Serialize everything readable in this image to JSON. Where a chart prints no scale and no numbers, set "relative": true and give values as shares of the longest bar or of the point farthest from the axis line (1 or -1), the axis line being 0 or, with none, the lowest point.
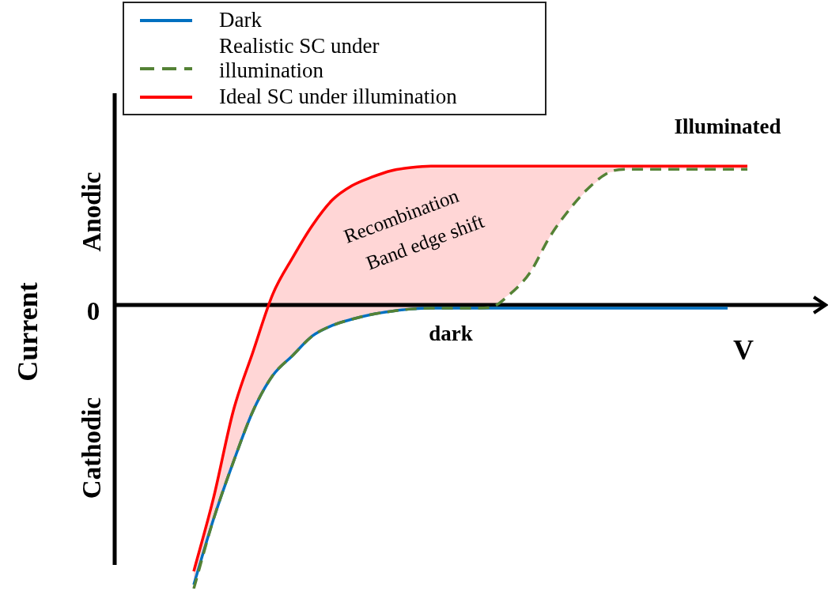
{
  "chart_data": {
    "type": "line",
    "relative": true,
    "xlabel": "V",
    "ylabel": "Current",
    "legend": "top left",
    "categories": [
      null,
      null,
      null,
      null,
      null,
      null,
      null,
      null,
      null,
      null,
      null,
      null,
      null,
      null,
      null,
      null,
      null,
      null,
      null,
      null,
      null,
      null,
      null,
      null,
      null,
      null,
      null,
      null,
      null,
      null,
      null,
      null,
      null,
      null,
      null,
      null,
      null
    ],
    "series": [
      {
        "name": "Dark",
        "color": "#0070c0",
        "values": [
          null,
          null,
          null,
          null,
          -0.986,
          -0.755,
          -0.554,
          -0.373,
          -0.248,
          -0.178,
          -0.109,
          -0.072,
          -0.05,
          -0.033,
          -0.022,
          -0.014,
          -0.011,
          -0.011,
          -0.011,
          -0.011,
          -0.011,
          -0.011,
          -0.011,
          -0.011,
          -0.011,
          -0.011,
          -0.011,
          -0.011,
          -0.011,
          -0.011,
          -0.011,
          -0.011,
          null,
          null,
          null,
          null,
          null
        ]
      },
      {
        "name": "Realistic SC under illumination",
        "color": "#548235",
        "line_style": "dashed",
        "values": [
          null,
          null,
          null,
          null,
          -1,
          -0.755,
          -0.554,
          -0.373,
          -0.248,
          -0.178,
          -0.109,
          -0.072,
          -0.05,
          -0.033,
          -0.022,
          -0.014,
          -0.011,
          -0.011,
          -0.011,
          -0.008,
          0.039,
          0.114,
          0.24,
          0.337,
          0.415,
          0.468,
          0.479,
          0.479,
          0.479,
          0.479,
          0.479,
          0.479,
          0.479,
          null,
          null,
          null,
          null
        ]
      },
      {
        "name": "Ideal SC under illumination",
        "color": "#ff0000",
        "values": [
          null,
          null,
          null,
          null,
          -0.939,
          -0.68,
          -0.373,
          -0.164,
          0.039,
          0.167,
          0.281,
          0.37,
          0.421,
          0.451,
          0.474,
          0.485,
          0.49,
          0.49,
          0.49,
          0.49,
          0.49,
          0.49,
          0.49,
          0.49,
          0.49,
          0.49,
          0.49,
          0.49,
          0.49,
          0.49,
          0.49,
          0.49,
          0.49,
          null,
          null,
          null,
          null
        ],
        "lower": [
          null,
          null,
          null,
          null,
          -1,
          -0.755,
          -0.554,
          -0.373,
          -0.248,
          -0.178,
          -0.109,
          -0.072,
          -0.05,
          -0.033,
          -0.022,
          -0.014,
          -0.011,
          -0.011,
          -0.011,
          -0.008,
          0.039,
          0.114,
          0.24,
          0.337,
          0.415,
          0.468,
          0.479,
          0.479,
          0.479,
          0.479,
          0.479,
          0.479,
          0.479,
          null,
          null,
          null,
          null
        ],
        "upper": [
          null,
          null,
          null,
          null,
          -0.939,
          -0.68,
          -0.373,
          -0.164,
          0.039,
          0.167,
          0.281,
          0.37,
          0.421,
          0.451,
          0.474,
          0.485,
          0.49,
          0.49,
          0.49,
          0.49,
          0.49,
          0.49,
          0.49,
          0.49,
          0.49,
          0.49,
          0.49,
          0.49,
          0.49,
          0.49,
          0.49,
          0.49,
          0.49,
          null,
          null,
          null,
          null
        ]
      }
    ],
    "annotations": [
      "Illuminated",
      "dark",
      "Recombination",
      "Band edge shift",
      "0",
      "Anodic",
      "Cathodic"
    ]
  }
}
